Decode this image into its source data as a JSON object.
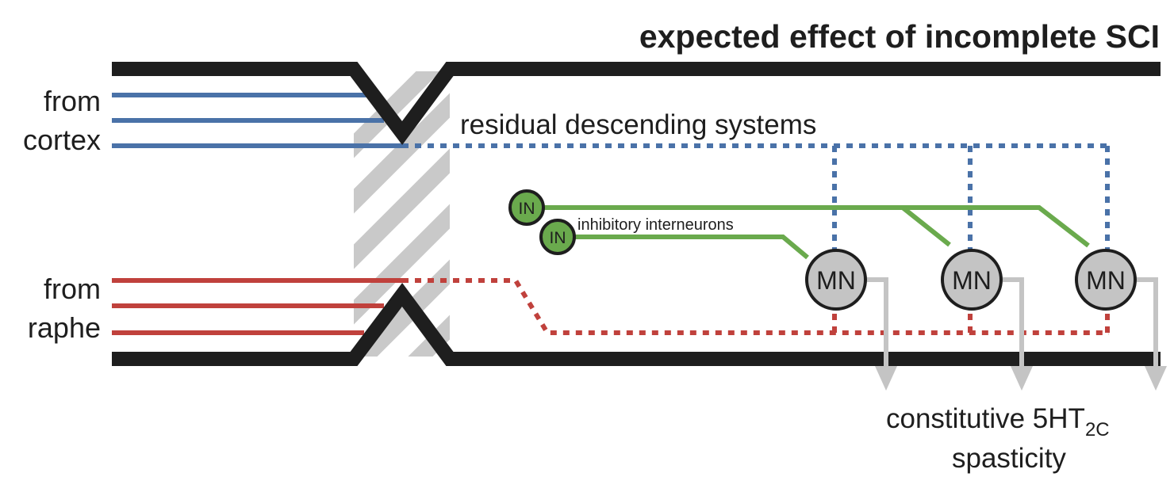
{
  "title": "expected effect of incomplete SCI",
  "sources": {
    "cortex": {
      "line1": "from",
      "line2": "cortex"
    },
    "raphe": {
      "line1": "from",
      "line2": "raphe"
    }
  },
  "labels": {
    "residual": "residual descending systems",
    "interneurons": "inhibitory interneurons",
    "outcome_main": "constitutive 5HT",
    "outcome_sub": "2C",
    "outcome_line2": "spasticity"
  },
  "nodes": {
    "interneuron": "IN",
    "motoneuron": "MN"
  },
  "colors": {
    "cortex": "#4a72a8",
    "raphe": "#c0413c",
    "interneuron": "#6aaa4d",
    "motoneuron_fill": "#c4c4c4",
    "cord": "#1e1e1e",
    "lesion": "#c9c9c9",
    "output": "#c4c4c4"
  }
}
